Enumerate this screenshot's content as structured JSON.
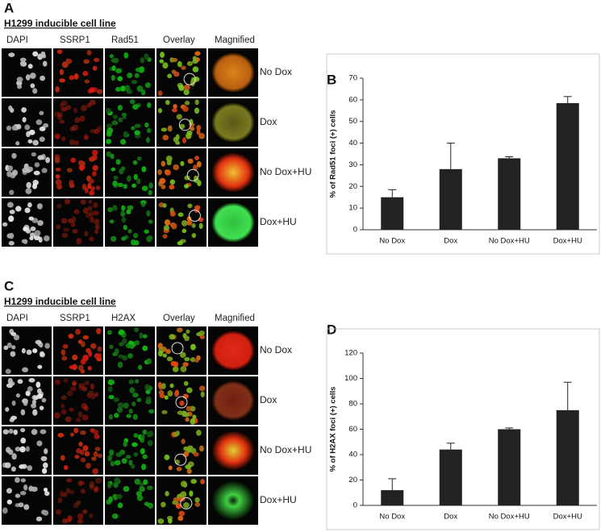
{
  "panels": [
    {
      "label": "A",
      "title": "H1299 inducible cell line",
      "columns": [
        "DAPI",
        "SSRP1",
        "Rad51",
        "Overlay",
        "Magnified"
      ],
      "rows": [
        "No Dox",
        "Dox",
        "No Dox+HU",
        "Dox+HU"
      ]
    },
    {
      "label": "C",
      "title": "H1299 inducible cell line",
      "columns": [
        "DAPI",
        "SSRP1",
        "H2AX",
        "Overlay",
        "Magnified"
      ],
      "rows": [
        "No Dox",
        "Dox",
        "No Dox+HU",
        "Dox+HU"
      ]
    }
  ],
  "chart_data": [
    {
      "type": "bar",
      "label": "B",
      "y_label": "% of Rad51 foci (+) cells",
      "categories": [
        "No Dox",
        "Dox",
        "No Dox+HU",
        "Dox+HU"
      ],
      "values": [
        15,
        28,
        33,
        58.5
      ],
      "errors": [
        3.5,
        12,
        0.7,
        3
      ],
      "color": "#222222",
      "ylim": [
        0,
        70
      ],
      "yticks": [
        0,
        10,
        20,
        30,
        40,
        50,
        60,
        70
      ]
    },
    {
      "type": "bar",
      "label": "D",
      "y_label": "% of H2AX foci (+) cells",
      "categories": [
        "No Dox",
        "Dox",
        "No Dox+HU",
        "Dox+HU"
      ],
      "values": [
        12,
        44,
        60,
        75
      ],
      "errors": [
        9,
        5,
        1,
        22
      ],
      "color": "#222222",
      "ylim": [
        0,
        120
      ],
      "yticks": [
        0,
        20,
        40,
        60,
        80,
        100,
        120
      ]
    }
  ]
}
